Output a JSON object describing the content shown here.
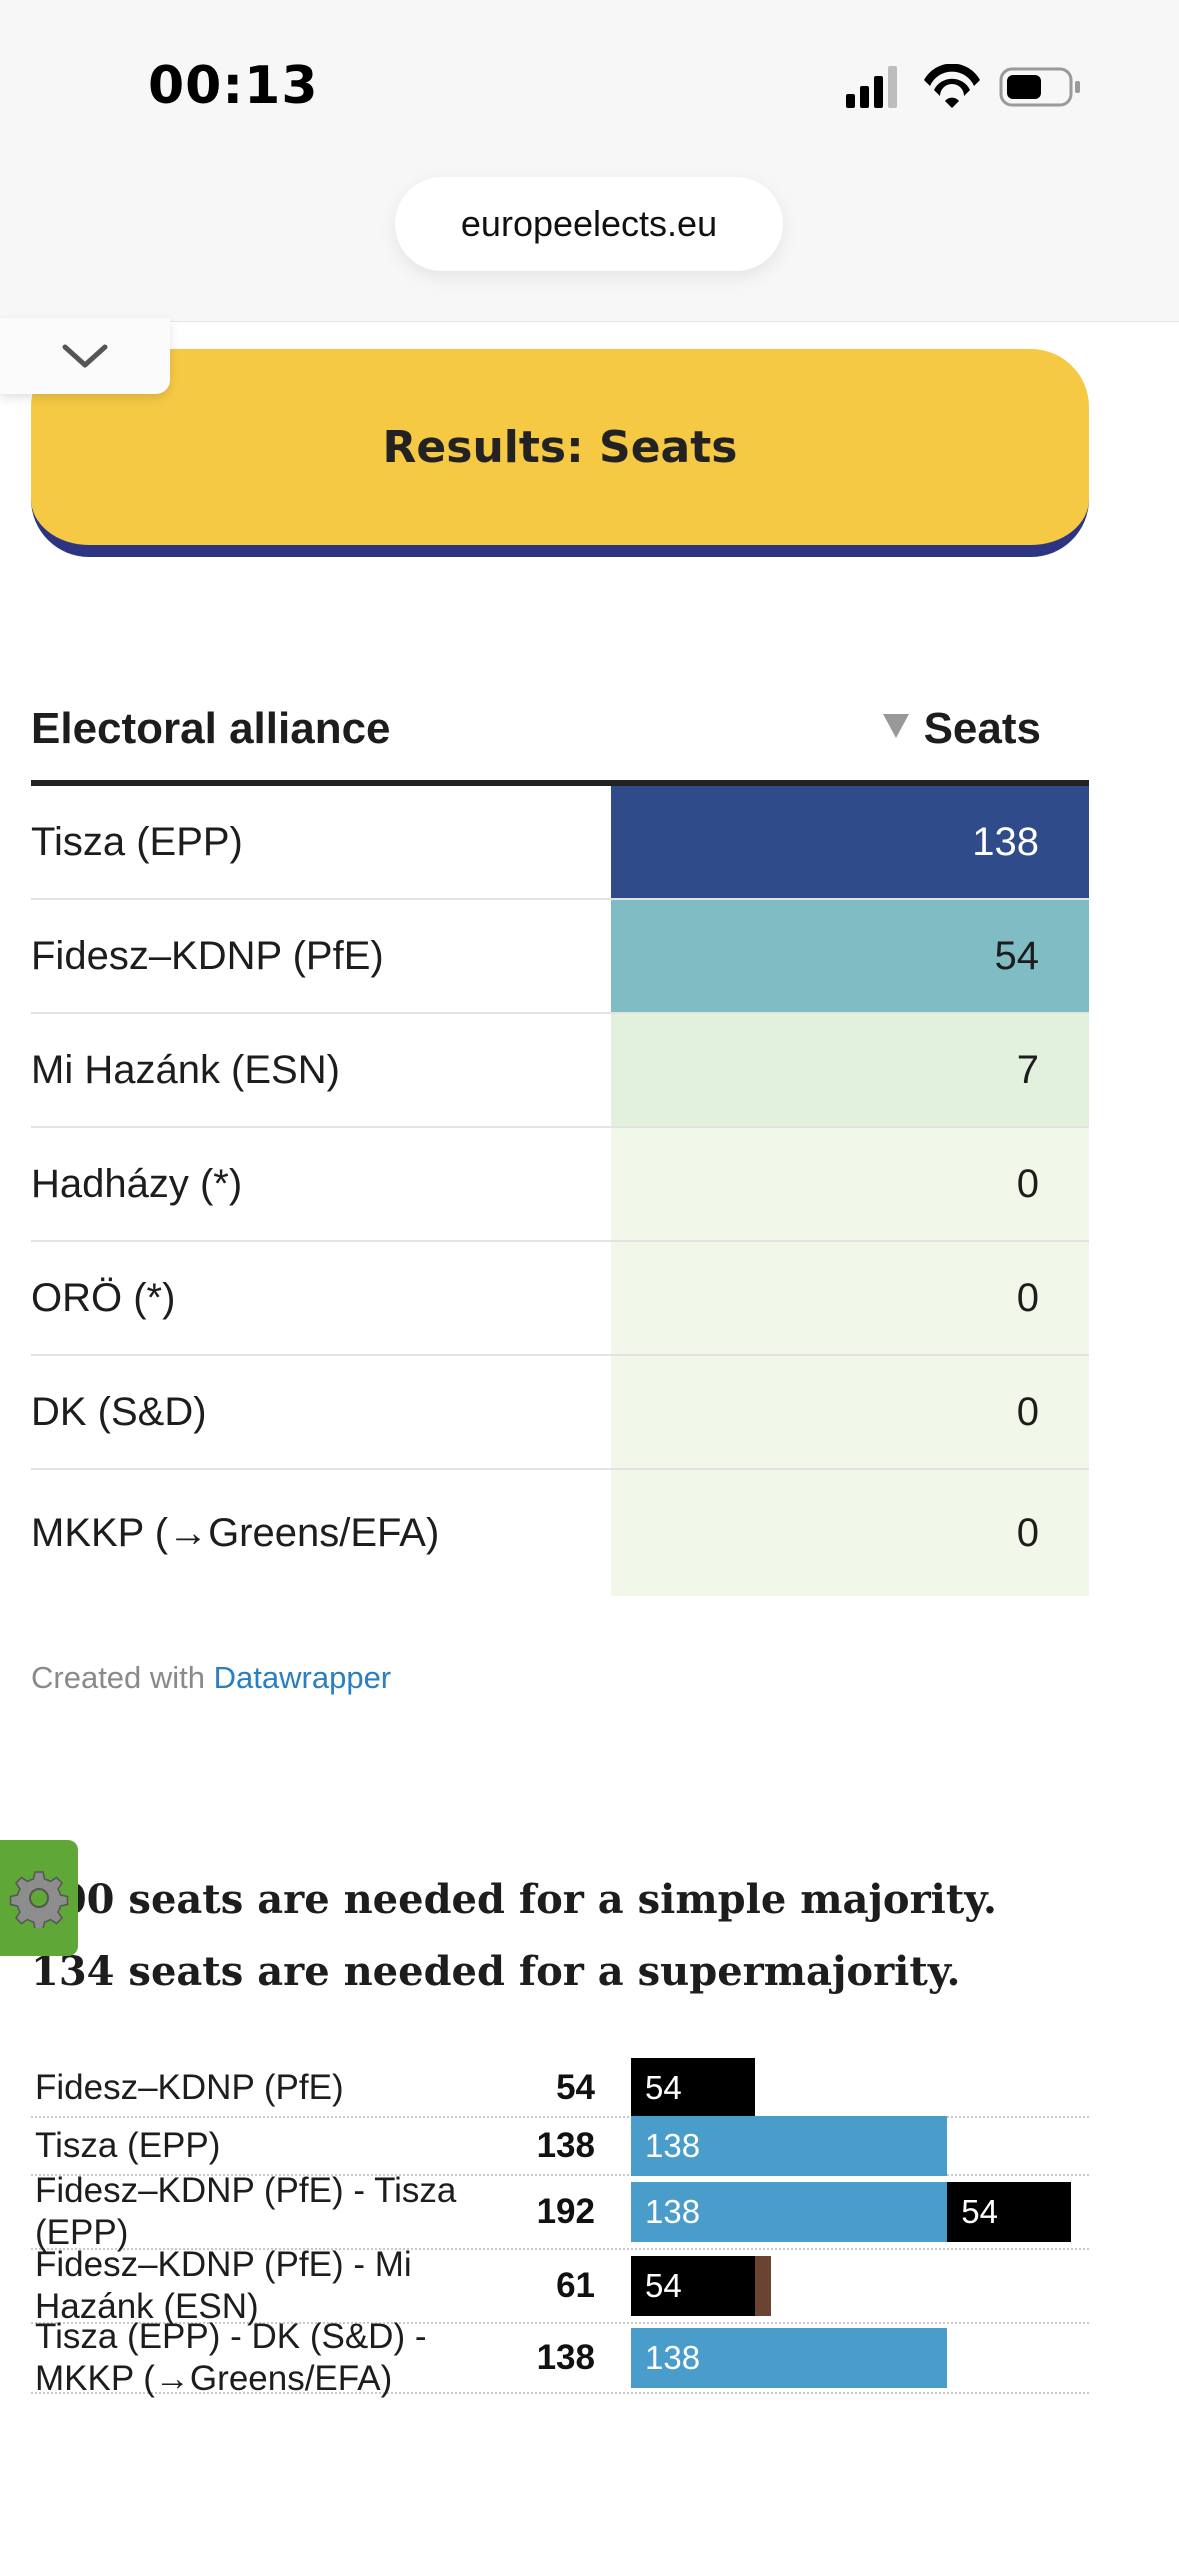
{
  "status_bar": {
    "time": "00:13"
  },
  "browser": {
    "url": "europeelects.eu"
  },
  "results_button": {
    "label": "Results: Seats"
  },
  "table": {
    "header": {
      "name": "Electoral alliance",
      "seats": "Seats"
    },
    "max_value": 138,
    "rows": [
      {
        "name": "Tisza (EPP)",
        "seats": "138",
        "value": 138,
        "bg": "#2f4b8a",
        "fg": "#ffffff"
      },
      {
        "name": "Fidesz–KDNP (PfE)",
        "seats": "54",
        "value": 54,
        "bg": "#80bcc4",
        "fg": "#1d1d1d"
      },
      {
        "name": "Mi Hazánk (ESN)",
        "seats": "7",
        "value": 7,
        "bg": "#e2f1dc",
        "fg": "#1d1d1d"
      },
      {
        "name": "Hadházy (*)",
        "seats": "0",
        "value": 0,
        "bg": "#f1f8ea",
        "fg": "#1d1d1d"
      },
      {
        "name": "ORÖ (*)",
        "seats": "0",
        "value": 0,
        "bg": "#f1f8ea",
        "fg": "#1d1d1d"
      },
      {
        "name": "DK (S&D)",
        "seats": "0",
        "value": 0,
        "bg": "#f1f8ea",
        "fg": "#1d1d1d"
      },
      {
        "name": "MKKP (→Greens/EFA)",
        "seats": "0",
        "value": 0,
        "bg": "#f1f8ea",
        "fg": "#1d1d1d"
      }
    ]
  },
  "credit": {
    "prefix": "Created with",
    "link": "Datawrapper"
  },
  "heading": {
    "text": "100 seats are needed for a simple majority. 134 seats are needed for a supermajority."
  },
  "chart_data": {
    "type": "bar",
    "stacked": true,
    "scale_max": 199,
    "colors": {
      "Fidesz–KDNP (PfE)": "#000000",
      "Tisza (EPP)": "#4a9ccb",
      "Mi Hazánk (ESN)": "#6b4431"
    },
    "rows": [
      {
        "label": "Fidesz–KDNP (PfE)",
        "total": "54",
        "segments": [
          {
            "party": "Fidesz–KDNP (PfE)",
            "value": 54,
            "label": "54"
          }
        ]
      },
      {
        "label": "Tisza (EPP)",
        "total": "138",
        "segments": [
          {
            "party": "Tisza (EPP)",
            "value": 138,
            "label": "138"
          }
        ]
      },
      {
        "label": "Fidesz–KDNP (PfE) - Tisza (EPP)",
        "total": "192",
        "segments": [
          {
            "party": "Tisza (EPP)",
            "value": 138,
            "label": "138"
          },
          {
            "party": "Fidesz–KDNP (PfE)",
            "value": 54,
            "label": "54"
          }
        ]
      },
      {
        "label": "Fidesz–KDNP (PfE) - Mi Hazánk (ESN)",
        "total": "61",
        "segments": [
          {
            "party": "Fidesz–KDNP (PfE)",
            "value": 54,
            "label": "54"
          },
          {
            "party": "Mi Hazánk (ESN)",
            "value": 7,
            "label": ""
          }
        ]
      },
      {
        "label": "Tisza (EPP) - DK (S&D) - MKKP (→Greens/EFA)",
        "total": "138",
        "segments": [
          {
            "party": "Tisza (EPP)",
            "value": 138,
            "label": "138"
          }
        ]
      }
    ]
  }
}
